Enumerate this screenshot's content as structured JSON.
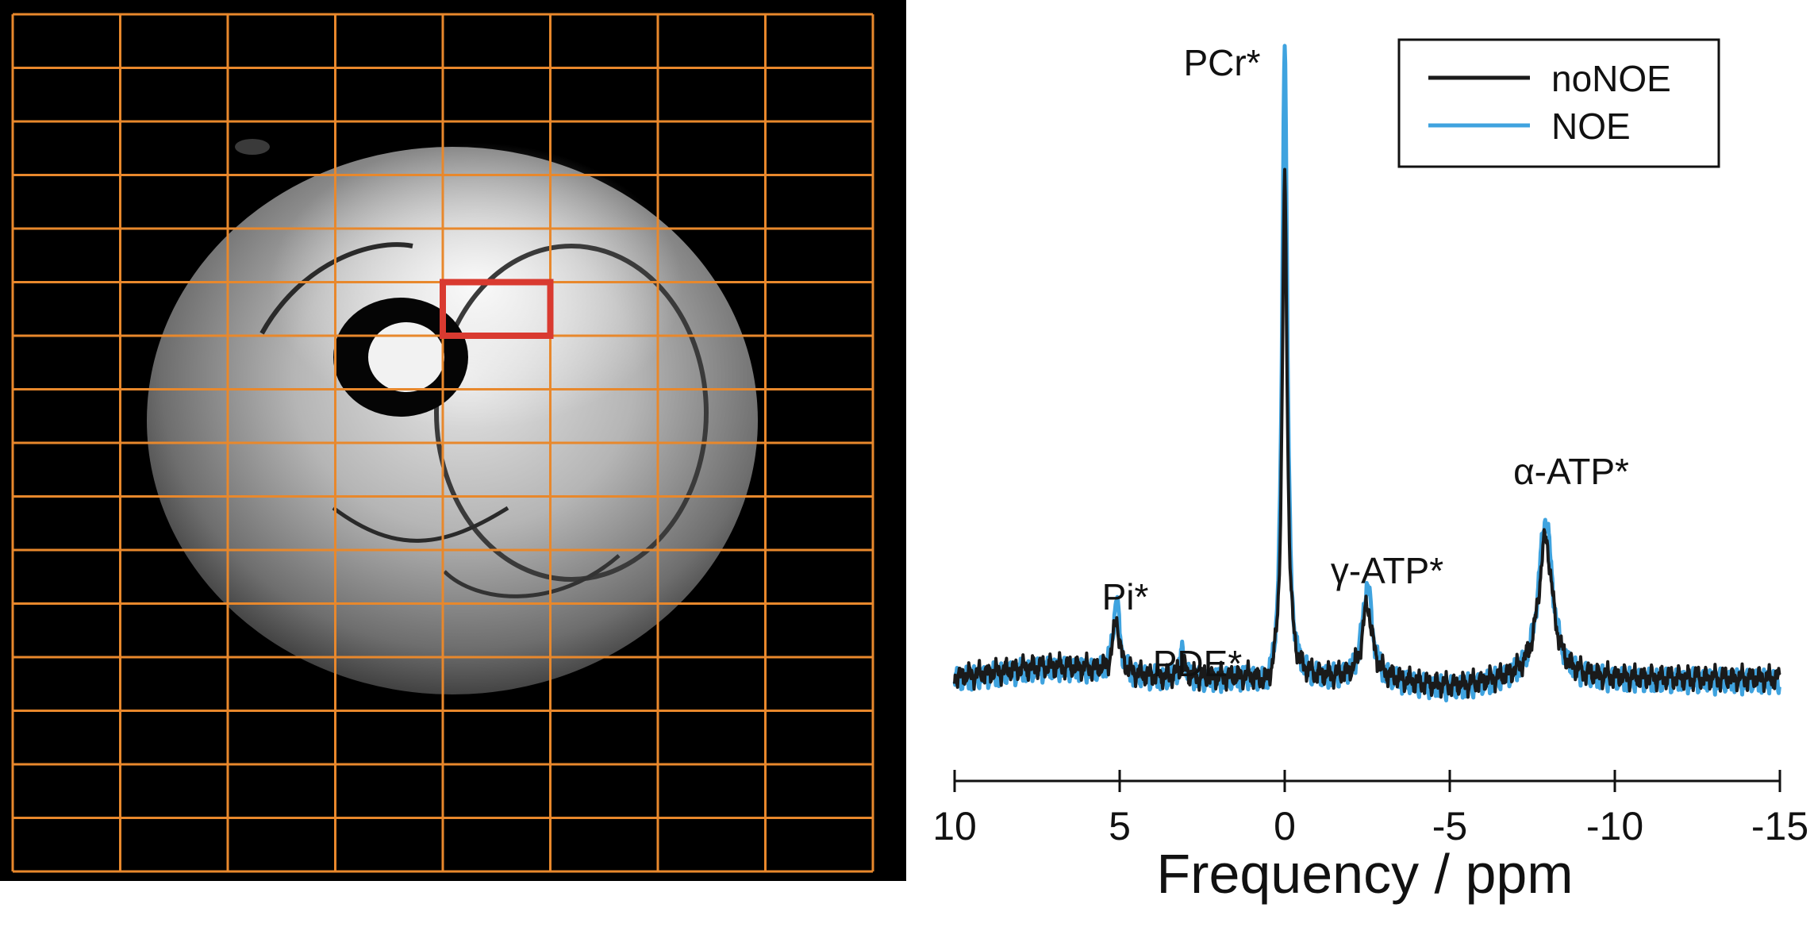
{
  "chart_data": [
    {
      "type": "image",
      "panel": "left",
      "content": "axial MRI cross-section with overlaid spectroscopic voxel grid",
      "grid": {
        "columns": 8,
        "rows": 16
      },
      "selected_voxel": {
        "column": 4,
        "row": 5
      },
      "colors": {
        "background": "#000000",
        "grid": "#e8882c",
        "selected": "#d93a30"
      }
    },
    {
      "type": "line",
      "panel": "right",
      "xlabel": "Frequency / ppm",
      "xlim": [
        10,
        -15
      ],
      "xaxis_reversed": true,
      "xticks": [
        10,
        5,
        0,
        -5,
        -10,
        -15
      ],
      "xtick_labels": [
        "10",
        "5",
        "0",
        "-5",
        "-10",
        "-15"
      ],
      "ylim": [
        -0.05,
        1.0
      ],
      "grid": false,
      "legend": "top-right",
      "series": [
        {
          "name": "noNOE",
          "color": "#1a1a1a",
          "baseline": 0.01,
          "peaks": [
            {
              "label": "Pi*",
              "x": 5.1,
              "y": 0.09
            },
            {
              "label": "PDE*",
              "x": 3.1,
              "y": 0.03
            },
            {
              "label": "PCr*",
              "x": 0.0,
              "y": 0.76
            },
            {
              "label": "γ-ATP*",
              "x": -2.5,
              "y": 0.12
            },
            {
              "label": "α-ATP*",
              "x": -7.9,
              "y": 0.22
            }
          ]
        },
        {
          "name": "NOE",
          "color": "#3fa3df",
          "baseline": 0.005,
          "peaks": [
            {
              "label": "Pi*",
              "x": 5.1,
              "y": 0.12
            },
            {
              "label": "PDE*",
              "x": 3.1,
              "y": 0.045
            },
            {
              "label": "PCr*",
              "x": 0.0,
              "y": 0.98
            },
            {
              "label": "γ-ATP*",
              "x": -2.5,
              "y": 0.15
            },
            {
              "label": "α-ATP*",
              "x": -7.9,
              "y": 0.25
            }
          ]
        }
      ],
      "annotations": [
        {
          "text": "PCr*",
          "x": 0.0
        },
        {
          "text": "Pi*",
          "x": 5.1
        },
        {
          "text": "PDE*",
          "x": 3.1
        },
        {
          "text": "γ-ATP*",
          "x": -2.5
        },
        {
          "text": "α-ATP*",
          "x": -7.9
        }
      ]
    }
  ]
}
